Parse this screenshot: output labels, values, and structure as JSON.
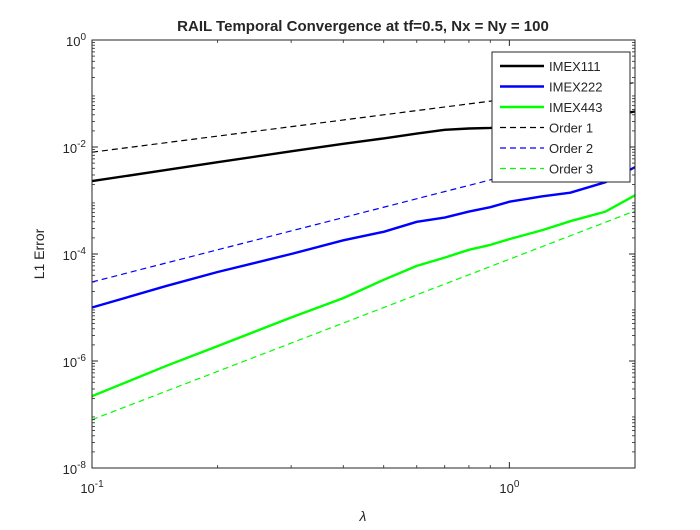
{
  "chart_data": {
    "type": "line",
    "title": "RAIL Temporal Convergence at tf=0.5, Nx = Ny = 100",
    "xlabel": "λ",
    "ylabel": "L1 Error",
    "xscale": "log",
    "yscale": "log",
    "xlim": [
      0.1,
      2
    ],
    "ylim": [
      1e-08,
      1
    ],
    "grid": false,
    "legend_position": "top-right",
    "x_ticks": [
      {
        "value": 0.1,
        "base": "10",
        "exp": "-1"
      },
      {
        "value": 1,
        "base": "10",
        "exp": "0"
      }
    ],
    "y_ticks": [
      {
        "value": 1e-08,
        "base": "10",
        "exp": "-8"
      },
      {
        "value": 1e-06,
        "base": "10",
        "exp": "-6"
      },
      {
        "value": 0.0001,
        "base": "10",
        "exp": "-4"
      },
      {
        "value": 0.01,
        "base": "10",
        "exp": "-2"
      },
      {
        "value": 1,
        "base": "10",
        "exp": "0"
      }
    ],
    "series": [
      {
        "name": "IMEX111",
        "color": "#000000",
        "style": "solid",
        "points": [
          [
            0.1,
            0.0023
          ],
          [
            0.15,
            0.0037
          ],
          [
            0.2,
            0.0052
          ],
          [
            0.3,
            0.0083
          ],
          [
            0.4,
            0.0115
          ],
          [
            0.5,
            0.0145
          ],
          [
            0.6,
            0.0178
          ],
          [
            0.7,
            0.021
          ],
          [
            0.8,
            0.0222
          ],
          [
            0.9,
            0.0228
          ],
          [
            1.0,
            0.0238
          ],
          [
            1.2,
            0.028
          ],
          [
            1.4,
            0.031
          ],
          [
            1.7,
            0.037
          ],
          [
            2.0,
            0.046
          ]
        ]
      },
      {
        "name": "IMEX222",
        "color": "#0000ff",
        "style": "solid",
        "points": [
          [
            0.1,
            1e-05
          ],
          [
            0.15,
            2.5e-05
          ],
          [
            0.2,
            4.6e-05
          ],
          [
            0.3,
            0.0001
          ],
          [
            0.4,
            0.00018
          ],
          [
            0.5,
            0.00026
          ],
          [
            0.6,
            0.0004
          ],
          [
            0.7,
            0.00048
          ],
          [
            0.8,
            0.00062
          ],
          [
            0.9,
            0.00075
          ],
          [
            1.0,
            0.00095
          ],
          [
            1.2,
            0.0012
          ],
          [
            1.4,
            0.0014
          ],
          [
            1.7,
            0.0022
          ],
          [
            2.0,
            0.0042
          ]
        ]
      },
      {
        "name": "IMEX443",
        "color": "#00ff00",
        "style": "solid",
        "points": [
          [
            0.1,
            2.2e-07
          ],
          [
            0.15,
            8e-07
          ],
          [
            0.2,
            1.9e-06
          ],
          [
            0.3,
            6.5e-06
          ],
          [
            0.4,
            1.5e-05
          ],
          [
            0.5,
            3.3e-05
          ],
          [
            0.6,
            6e-05
          ],
          [
            0.7,
            8.57e-05
          ],
          [
            0.8,
            0.00012
          ],
          [
            0.9,
            0.000148
          ],
          [
            1.0,
            0.00019
          ],
          [
            1.2,
            0.00028
          ],
          [
            1.4,
            0.00041
          ],
          [
            1.7,
            0.00062
          ],
          [
            2.0,
            0.00125
          ]
        ]
      },
      {
        "name": "Order 1",
        "color": "#000000",
        "style": "dashed",
        "points": [
          [
            0.1,
            0.008
          ],
          [
            2.0,
            0.16
          ]
        ]
      },
      {
        "name": "Order 2",
        "color": "#0000ff",
        "style": "dashed",
        "points": [
          [
            0.1,
            3e-05
          ],
          [
            2.0,
            0.012
          ]
        ]
      },
      {
        "name": "Order 3",
        "color": "#00ff00",
        "style": "dashed",
        "points": [
          [
            0.1,
            8e-08
          ],
          [
            2.0,
            0.00064
          ]
        ]
      }
    ]
  }
}
